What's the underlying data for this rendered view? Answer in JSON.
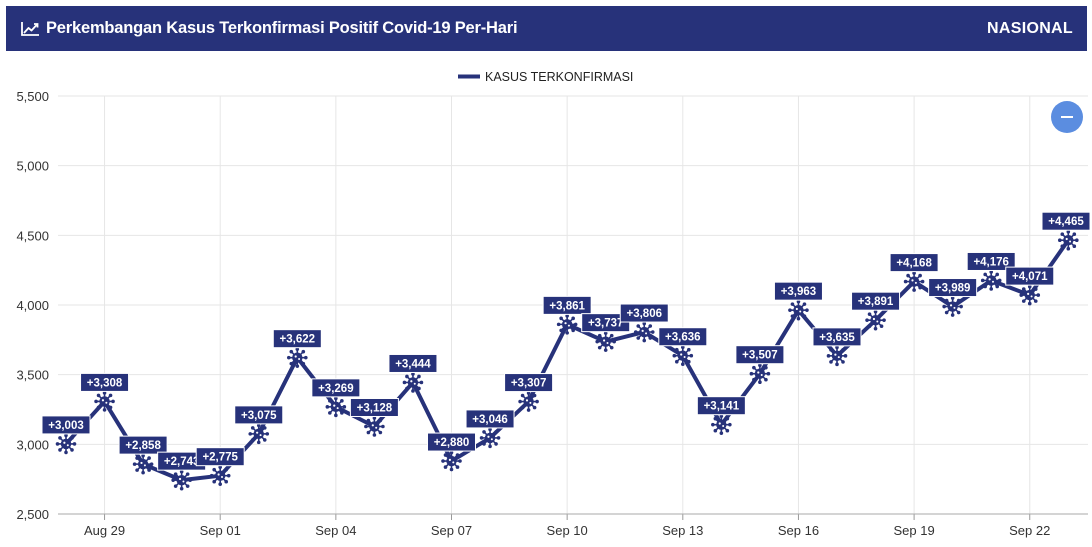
{
  "header": {
    "title": "Perkembangan Kasus Terkonfirmasi Positif Covid-19 Per-Hari",
    "scope": "NASIONAL",
    "icon": "trend-chart-icon"
  },
  "zoom_button": {
    "icon": "minus-icon",
    "color": "#5b8de0"
  },
  "colors": {
    "brand": "#27327a",
    "line": "#27327a",
    "grid": "#e6e6e6"
  },
  "chart_data": {
    "type": "line",
    "title": "",
    "xlabel": "",
    "ylabel": "",
    "ylim": [
      2500,
      5500
    ],
    "yticks": [
      "2,500",
      "3,000",
      "3,500",
      "4,000",
      "4,500",
      "5,000",
      "5,500"
    ],
    "xtick_labels": [
      "Aug 29",
      "Sep 01",
      "Sep 04",
      "Sep 07",
      "Sep 10",
      "Sep 13",
      "Sep 16",
      "Sep 19",
      "Sep 22"
    ],
    "legend": {
      "position": "top-center",
      "items": [
        "KASUS TERKONFIRMASI"
      ]
    },
    "grid": true,
    "series": [
      {
        "name": "KASUS TERKONFIRMASI",
        "x": [
          "Aug 28",
          "Aug 29",
          "Aug 30",
          "Aug 31",
          "Sep 01",
          "Sep 02",
          "Sep 03",
          "Sep 04",
          "Sep 05",
          "Sep 06",
          "Sep 07",
          "Sep 08",
          "Sep 09",
          "Sep 10",
          "Sep 11",
          "Sep 12",
          "Sep 13",
          "Sep 14",
          "Sep 15",
          "Sep 16",
          "Sep 17",
          "Sep 18",
          "Sep 19",
          "Sep 20",
          "Sep 21",
          "Sep 22",
          "Sep 23"
        ],
        "values": [
          3003,
          3308,
          2858,
          2743,
          2775,
          3075,
          3622,
          3269,
          3128,
          3444,
          2880,
          3046,
          3307,
          3861,
          3737,
          3806,
          3636,
          3141,
          3507,
          3963,
          3635,
          3891,
          4168,
          3989,
          4176,
          4071,
          4465
        ],
        "labels": [
          "+3,003",
          "+3,308",
          "+2,858",
          "+2,743",
          "+2,775",
          "+3,075",
          "+3,622",
          "+3,269",
          "+3,128",
          "+3,444",
          "+2,880",
          "+3,046",
          "+3,307",
          "+3,861",
          "+3,737",
          "+3,806",
          "+3,636",
          "+3,141",
          "+3,507",
          "+3,963",
          "+3,635",
          "+3,891",
          "+4,168",
          "+3,989",
          "+4,176",
          "+4,071",
          "+4,465"
        ]
      }
    ]
  }
}
